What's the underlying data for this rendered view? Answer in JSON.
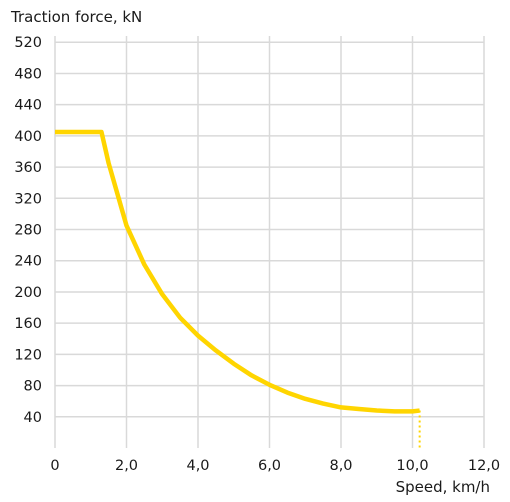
{
  "chart_data": {
    "type": "line",
    "ylabel": "Traction force, kN",
    "xlabel": "Speed, km/h",
    "xlim": [
      0,
      12
    ],
    "x_ticks": [
      "0",
      "2,0",
      "4,0",
      "6,0",
      "8,0",
      "10,0",
      "12,0"
    ],
    "x_tick_values": [
      0,
      2,
      4,
      6,
      8,
      10,
      12
    ],
    "y_ticks": [
      "40",
      "80",
      "120",
      "160",
      "200",
      "240",
      "280",
      "320",
      "360",
      "400",
      "440",
      "480",
      "520"
    ],
    "y_tick_values": [
      40,
      80,
      120,
      160,
      200,
      240,
      280,
      320,
      360,
      400,
      440,
      480,
      520
    ],
    "grid": true,
    "line_color": "#ffd500",
    "grid_color": "#d9d9d9",
    "series": [
      {
        "points": [
          [
            0,
            405
          ],
          [
            1.3,
            405
          ],
          [
            1.5,
            365
          ],
          [
            2.0,
            285
          ],
          [
            2.5,
            235
          ],
          [
            3.0,
            197
          ],
          [
            3.5,
            167
          ],
          [
            4.0,
            144
          ],
          [
            4.5,
            125
          ],
          [
            5.0,
            108
          ],
          [
            5.5,
            93
          ],
          [
            6.0,
            81
          ],
          [
            6.5,
            71
          ],
          [
            7.0,
            63
          ],
          [
            7.5,
            57
          ],
          [
            8.0,
            52
          ],
          [
            8.5,
            50
          ],
          [
            9.0,
            48
          ],
          [
            9.5,
            47
          ],
          [
            10.0,
            47
          ],
          [
            10.2,
            48
          ]
        ]
      }
    ],
    "dotted_drop": {
      "x": 10.2,
      "from_y": 48,
      "to_y": 40
    }
  }
}
